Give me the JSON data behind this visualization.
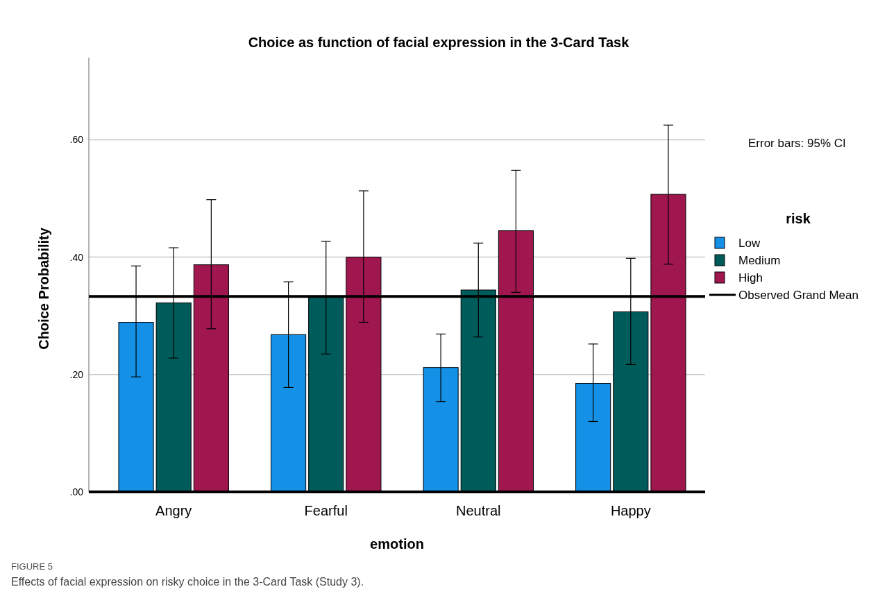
{
  "chart_data": {
    "type": "bar",
    "title": "Choice as function of facial expression in the 3-Card Task",
    "xlabel": "emotion",
    "ylabel": "Choice Probability",
    "legend_title": "risk",
    "categories": [
      "Angry",
      "Fearful",
      "Neutral",
      "Happy"
    ],
    "series": [
      {
        "name": "Low",
        "color": "#1490e6",
        "values": [
          0.289,
          0.268,
          0.212,
          0.185
        ],
        "errors": [
          [
            0.196,
            0.385
          ],
          [
            0.178,
            0.358
          ],
          [
            0.154,
            0.269
          ],
          [
            0.12,
            0.252
          ]
        ]
      },
      {
        "name": "Medium",
        "color": "#005b5b",
        "values": [
          0.322,
          0.333,
          0.344,
          0.307
        ],
        "errors": [
          [
            0.228,
            0.416
          ],
          [
            0.235,
            0.427
          ],
          [
            0.264,
            0.424
          ],
          [
            0.217,
            0.398
          ]
        ]
      },
      {
        "name": "High",
        "color": "#a0174f",
        "values": [
          0.387,
          0.4,
          0.445,
          0.507
        ],
        "errors": [
          [
            0.278,
            0.498
          ],
          [
            0.289,
            0.513
          ],
          [
            0.34,
            0.548
          ],
          [
            0.388,
            0.625
          ]
        ]
      }
    ],
    "ylim": [
      0,
      0.74
    ],
    "yticks": [
      {
        "value": 0,
        "label": ".00"
      },
      {
        "value": 0.2,
        "label": ".20"
      },
      {
        "value": 0.4,
        "label": ".40"
      },
      {
        "value": 0.6,
        "label": ".60"
      }
    ],
    "ref_lines": [
      {
        "axis": "y",
        "value": 0.333,
        "label": "Observed Grand Mean",
        "color": "#000000"
      }
    ],
    "grid": "y",
    "legend": "right",
    "annotations": [
      "Error bars: 95% CI",
      "FIGURE 5",
      "Effects of facial expression on risky choice in the 3-Card Task (Study 3)."
    ]
  }
}
